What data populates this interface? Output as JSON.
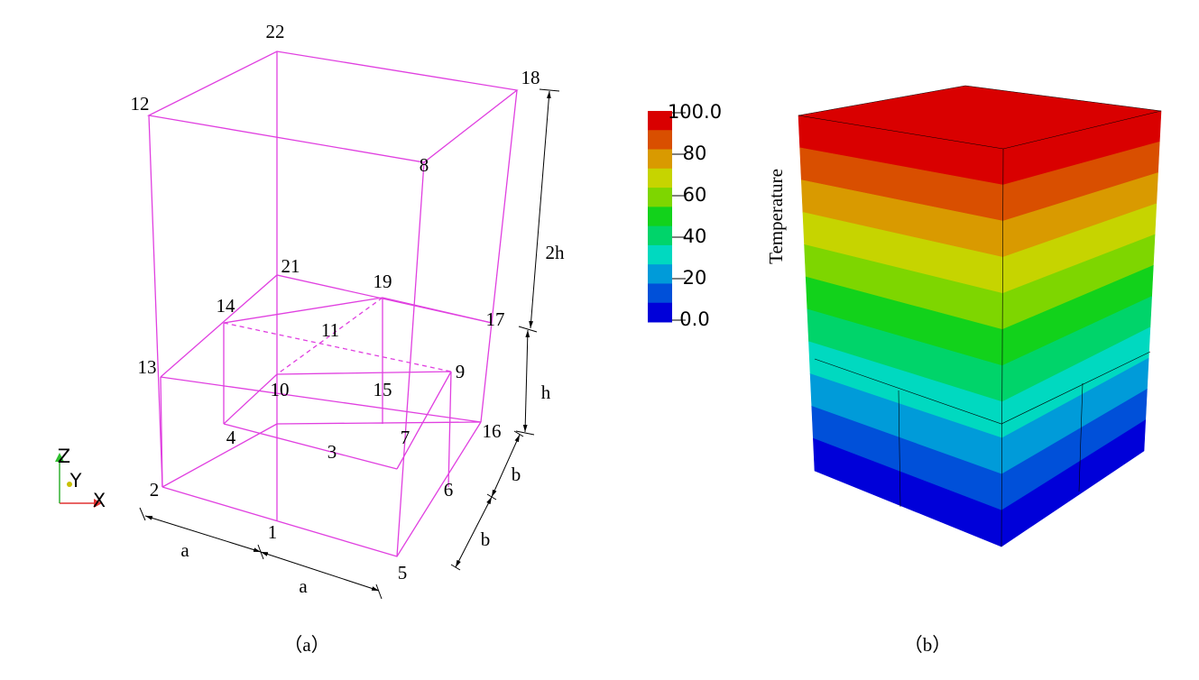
{
  "nodes": [
    "22",
    "18",
    "12",
    "8",
    "21",
    "19",
    "14",
    "11",
    "17",
    "13",
    "9",
    "10",
    "15",
    "16",
    "7",
    "4",
    "3",
    "6",
    "2",
    "1",
    "5"
  ],
  "dimensions": [
    "a",
    "a",
    "b",
    "b",
    "h",
    "2h"
  ],
  "axes": [
    "Z",
    "Y",
    "X"
  ],
  "colorbar": {
    "title": "Temperature",
    "ticks": [
      "100.0",
      "80",
      "60",
      "40",
      "20",
      "0.0"
    ],
    "colors": [
      "#d90000",
      "#d94f00",
      "#d99a00",
      "#c6d400",
      "#7ed600",
      "#12d21b",
      "#00d46a",
      "#00d9c0",
      "#009bd9",
      "#0050d9",
      "#0000d9"
    ]
  },
  "captions": [
    "（a）",
    "（b）"
  ]
}
